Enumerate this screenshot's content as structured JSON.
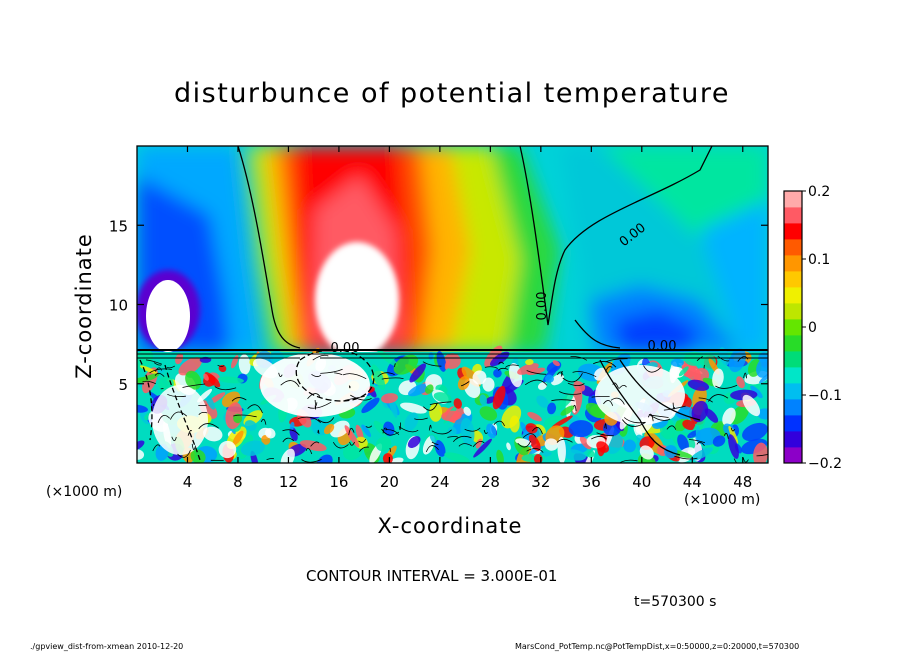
{
  "chart_data": {
    "type": "heatmap",
    "title": "disturbunce of potential temperature",
    "xlabel": "X-coordinate",
    "ylabel": "Z-coordinate",
    "x_unit": "(×1000 m)",
    "xlim": [
      0,
      50
    ],
    "ylim": [
      0,
      20
    ],
    "x_ticks": [
      4,
      8,
      12,
      16,
      20,
      24,
      28,
      32,
      36,
      40,
      44,
      48
    ],
    "y_ticks": [
      5,
      10,
      15
    ],
    "colorbar": {
      "range": [
        -0.2,
        0.2
      ],
      "tick_values": [
        0.2,
        0.1,
        0,
        -0.1,
        -0.2
      ],
      "tick_labels": [
        "0.2",
        "0.1",
        "0",
        "−0.1",
        "−0.2"
      ],
      "colors": [
        "#8c00c8",
        "#3200dc",
        "#0032ff",
        "#0082ff",
        "#00bef0",
        "#00e6c8",
        "#00dc78",
        "#28dc28",
        "#64e600",
        "#bee600",
        "#f0f000",
        "#ffc800",
        "#ff9600",
        "#ff5a00",
        "#ff0000",
        "#ff5a64",
        "#ffaaaa"
      ]
    },
    "contour_label": "0.00",
    "contour_interval": "CONTOUR INTERVAL = 3.000E-01",
    "time": "t=570300 s"
  },
  "footer": {
    "left": "./gpview_dist-from-xmean  2010-12-20",
    "right": "MarsCond_PotTemp.nc@PotTempDist,x=0:50000,z=0:20000,t=570300"
  }
}
